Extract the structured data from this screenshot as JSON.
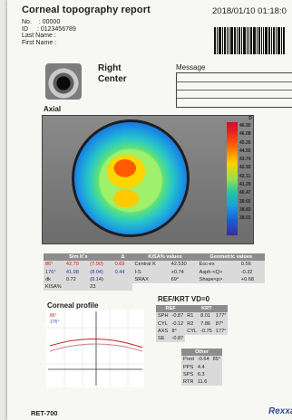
{
  "report": {
    "title": "Corneal topography report",
    "datetime": "2018/01/10 01:18:0",
    "no_label": "No.",
    "no_value": ": 00000",
    "id_label": "ID",
    "id_value": ": 0123456789",
    "last_name_label": "Last Name :",
    "first_name_label": "First Name :",
    "eye_side": "Right",
    "eye_position": "Center",
    "message_label": "Message",
    "axial_label": "Axial",
    "profile_label": "Corneal profile",
    "refkrt_label": "REF/KRT   VD=0",
    "model": "RET-700",
    "brand": "Rexxa"
  },
  "scale": {
    "unit": "D",
    "values": [
      "46.90",
      "46.08",
      "45.26",
      "44.55",
      "43.74",
      "42.92",
      "42.11",
      "41.29",
      "40.47",
      "39.65",
      "38.83",
      "38.01"
    ]
  },
  "sim_k": {
    "headers": [
      "Sim K's",
      "Δ",
      "KISA% values",
      "Geometric values"
    ],
    "rows": [
      {
        "c1": "86°",
        "c2": "42.70",
        "c3": "(7.90)",
        "c4": "0.69",
        "k1": "Central K",
        "k2": "42.530",
        "g1": "Ecc-ex",
        "g2": "0.56"
      },
      {
        "c1": "176°",
        "c2": "41.98",
        "c3": "(8.04)",
        "c4": "0.44",
        "k1": "I-S",
        "k2": "+0.74",
        "g1": "Asph-<Q>",
        "g2": "-0.32"
      },
      {
        "c1": "dk",
        "c2": "0.72",
        "c3": "(0.14)",
        "c4": "",
        "k1": "SRAX",
        "k2": "69°",
        "g1": "Shape<p>",
        "g2": "+0.68"
      },
      {
        "c1": "KISA%",
        "c2": "23",
        "c3": "",
        "c4": "",
        "k1": "",
        "k2": "",
        "g1": "",
        "g2": ""
      }
    ]
  },
  "ref": {
    "head_ref": "REF",
    "head_krt": "KRT",
    "rows": [
      {
        "a": "SPH",
        "b": "-0.87",
        "c": "R1",
        "d": "8.01",
        "e": "177°"
      },
      {
        "a": "CYL",
        "b": "-0.12",
        "c": "R2",
        "d": "7.86",
        "e": "87°"
      },
      {
        "a": "AXS",
        "b": "8°",
        "c": "CYL",
        "d": "-0.75",
        "e": "177°"
      },
      {
        "a": "SE",
        "b": "-0.87",
        "c": "",
        "d": "",
        "e": ""
      }
    ],
    "other_head": "Other",
    "other_rows": [
      {
        "a": "Pred",
        "b": "-0.64",
        "c": "85°"
      },
      {
        "a": "PPS",
        "b": "4.4",
        "c": ""
      },
      {
        "a": "SPS",
        "b": "6.3",
        "c": ""
      },
      {
        "a": "RTR",
        "b": "11.6",
        "c": ""
      }
    ]
  },
  "profile": {
    "legend_86": "86°",
    "legend_176": "176°",
    "color_86": "#cc1f1f",
    "color_176": "#c48888"
  }
}
